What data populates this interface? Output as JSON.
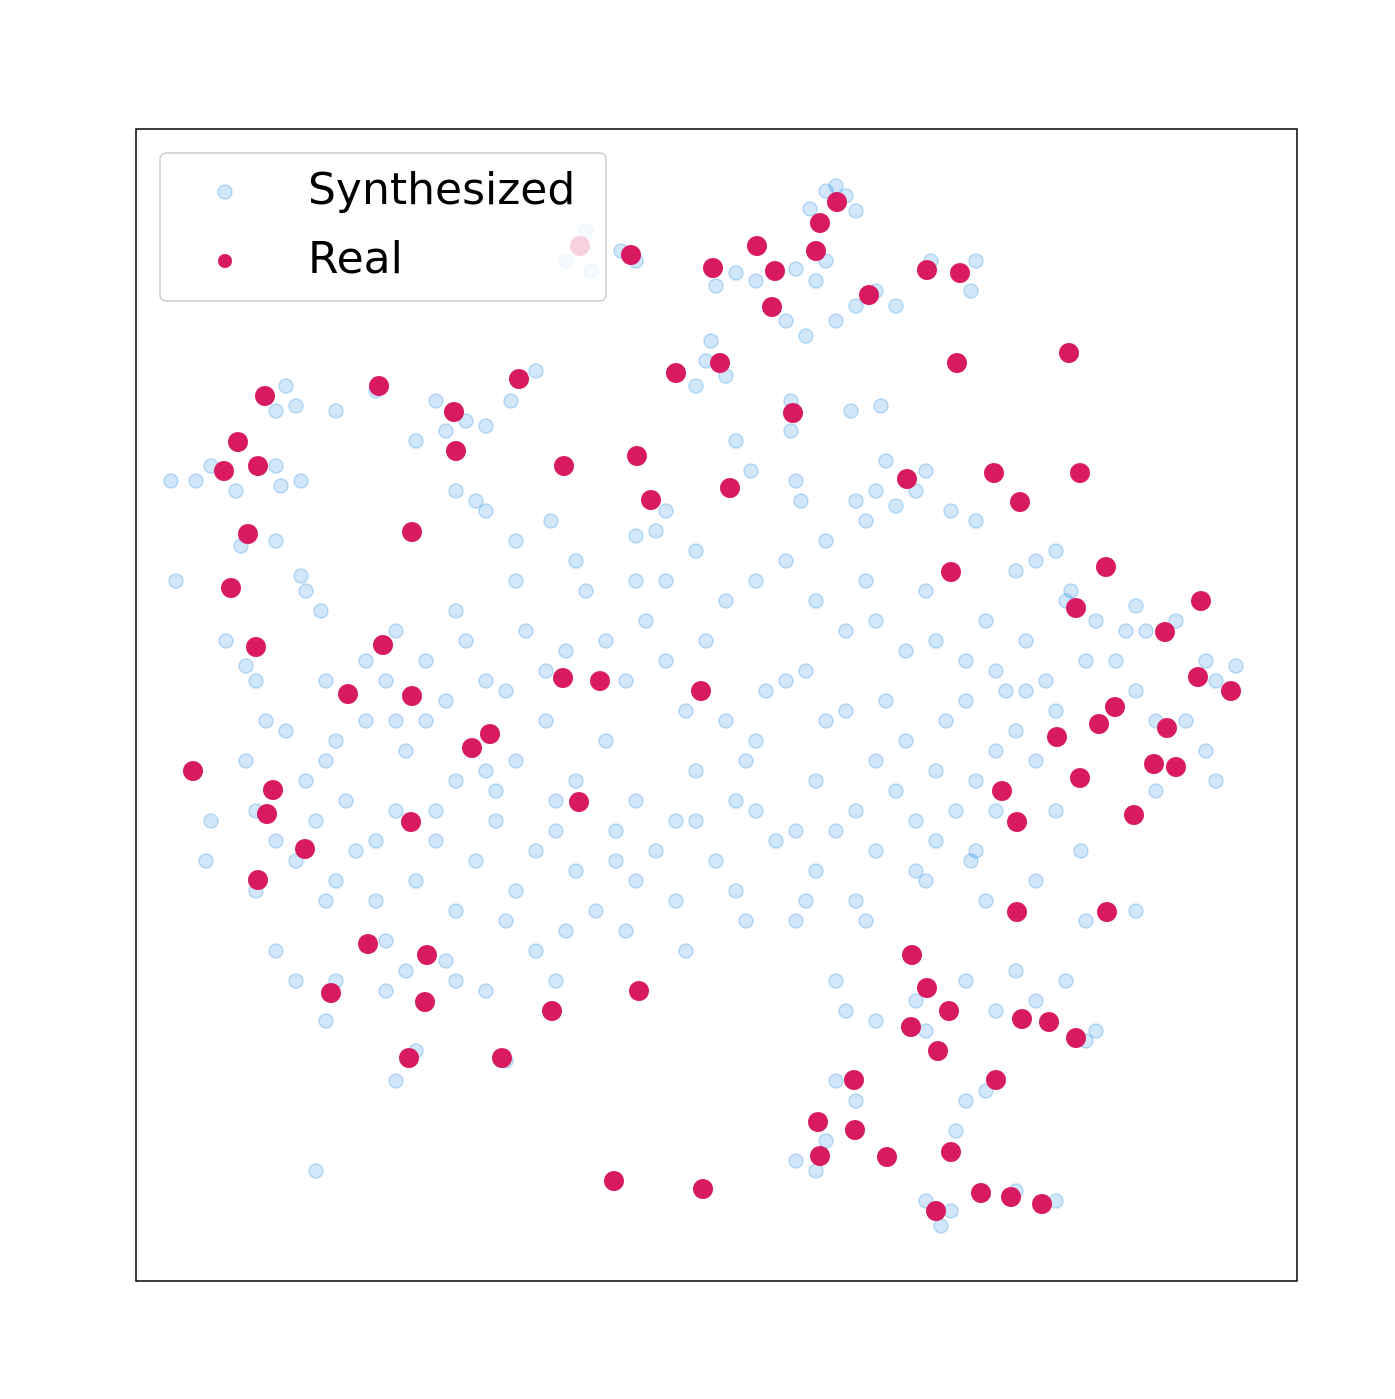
{
  "chart_data": {
    "type": "scatter",
    "xlim": [
      0,
      1161
    ],
    "ylim": [
      0,
      1152
    ],
    "legend": "upper left",
    "series": [
      {
        "name": "Synthesized",
        "color": "#1e88e5",
        "opacity": 0.2,
        "x": [
          700,
          710,
          690,
          720,
          674,
          690,
          660,
          680,
          600,
          580,
          620,
          650,
          670,
          720,
          700,
          740,
          760,
          795,
          840,
          835,
          450,
          430,
          455,
          500,
          485,
          575,
          570,
          560,
          590,
          400,
          375,
          300,
          310,
          330,
          350,
          280,
          150,
          140,
          160,
          240,
          200,
          655,
          655,
          715,
          745,
          60,
          75,
          140,
          145,
          165,
          100,
          110,
          140,
          165,
          105,
          340,
          350,
          380,
          415,
          320,
          530,
          520,
          500,
          615,
          600,
          665,
          660,
          750,
          740,
          760,
          780,
          790,
          720,
          730,
          690,
          815,
          840,
          880,
          900,
          920,
          935,
          960,
          1000,
          1010,
          1040,
          1070,
          1100,
          1080,
          990,
          90,
          110,
          120,
          170,
          185,
          190,
          35,
          150,
          170,
          190,
          210,
          230,
          250,
          270,
          290,
          310,
          330,
          350,
          370,
          390,
          410,
          430,
          450,
          470,
          490,
          510,
          530,
          550,
          570,
          590,
          610,
          630,
          650,
          670,
          690,
          710,
          730,
          750,
          770,
          790,
          810,
          830,
          850,
          870,
          890,
          910,
          930,
          950,
          980,
          1000,
          1020,
          1050,
          1070,
          1080,
          120,
          140,
          160,
          180,
          200,
          220,
          240,
          260,
          280,
          300,
          320,
          340,
          360,
          380,
          400,
          420,
          440,
          460,
          480,
          500,
          520,
          540,
          560,
          580,
          600,
          620,
          640,
          660,
          680,
          700,
          720,
          740,
          760,
          780,
          800,
          820,
          840,
          860,
          880,
          900,
          110,
          130,
          200,
          260,
          320,
          380,
          440,
          500,
          560,
          620,
          680,
          740,
          800,
          860,
          230,
          290,
          350,
          410,
          470,
          530,
          590,
          650,
          710,
          770,
          830,
          890,
          260,
          320,
          380,
          440,
          500,
          560,
          620,
          680,
          740,
          800,
          860,
          920,
          240,
          300,
          360,
          420,
          480,
          540,
          600,
          660,
          720,
          780,
          840,
          190,
          250,
          310,
          370,
          430,
          490,
          550,
          610,
          670,
          730,
          790,
          850,
          200,
          250,
          270,
          320,
          350,
          400,
          420,
          190,
          260,
          280,
          370,
          700,
          710,
          740,
          780,
          790,
          830,
          880,
          900,
          930,
          950,
          960,
          860,
          700,
          720,
          660,
          680,
          690,
          830,
          850,
          820,
          815,
          790,
          805,
          880,
          920,
          180,
          70,
          75,
          140,
          160,
          945,
          950,
          900,
          1000,
          835,
          920,
          1020,
          120,
          40
        ],
        "values": [
          1095,
          1085,
          1090,
          1070,
          1072,
          1020,
          1012,
          1000,
          1008,
          995,
          1000,
          960,
          945,
          975,
          960,
          990,
          975,
          1020,
          1020,
          990,
          1050,
          1020,
          1010,
          1020,
          1030,
          940,
          920,
          895,
          905,
          910,
          880,
          880,
          850,
          860,
          855,
          840,
          895,
          870,
          875,
          890,
          870,
          880,
          850,
          870,
          875,
          800,
          815,
          815,
          795,
          800,
          790,
          745,
          740,
          705,
          735,
          780,
          770,
          740,
          760,
          790,
          770,
          750,
          745,
          810,
          840,
          780,
          800,
          820,
          790,
          775,
          790,
          810,
          780,
          760,
          740,
          770,
          760,
          710,
          720,
          730,
          690,
          660,
          675,
          650,
          660,
          620,
          615,
          600,
          650,
          640,
          615,
          600,
          690,
          670,
          600,
          800,
          550,
          500,
          520,
          480,
          560,
          600,
          530,
          620,
          580,
          640,
          510,
          590,
          650,
          560,
          630,
          690,
          540,
          600,
          660,
          700,
          570,
          640,
          680,
          520,
          590,
          720,
          610,
          560,
          650,
          700,
          580,
          630,
          690,
          560,
          620,
          660,
          590,
          640,
          600,
          680,
          620,
          620,
          590,
          560,
          560,
          530,
          500,
          470,
          440,
          420,
          460,
          400,
          430,
          380,
          470,
          400,
          440,
          370,
          420,
          460,
          390,
          430,
          480,
          410,
          370,
          450,
          400,
          430,
          380,
          460,
          420,
          390,
          470,
          440,
          360,
          410,
          450,
          380,
          430,
          490,
          410,
          440,
          470,
          500,
          530,
          550,
          520,
          520,
          560,
          540,
          560,
          500,
          520,
          500,
          480,
          510,
          540,
          500,
          520,
          510,
          470,
          620,
          560,
          600,
          610,
          640,
          620,
          560,
          600,
          570,
          540,
          580,
          590,
          650,
          670,
          700,
          720,
          700,
          730,
          700,
          680,
          660,
          640,
          610,
          570,
          440,
          470,
          490,
          450,
          420,
          460,
          480,
          450,
          470,
          460,
          430,
          380,
          340,
          320,
          360,
          350,
          350,
          330,
          360,
          380,
          360,
          400,
          380,
          300,
          290,
          310,
          300,
          290,
          330,
          300,
          260,
          200,
          230,
          220,
          300,
          270,
          260,
          280,
          250,
          300,
          310,
          280,
          300,
          240,
          250,
          270,
          200,
          180,
          120,
          110,
          140,
          180,
          190,
          150,
          70,
          80,
          55,
          90,
          80,
          110,
          420,
          460,
          330,
          300,
          430,
          360,
          400,
          370,
          420,
          470,
          490,
          390,
          700
        ]
      },
      {
        "name": "Real",
        "color": "#d81b60",
        "opacity": 1,
        "x": [
          444,
          495,
          701,
          684,
          621,
          680,
          577,
          639,
          791,
          824,
          733,
          636,
          821,
          933,
          540,
          584,
          383,
          243,
          129,
          318,
          657,
          102,
          320,
          88,
          122,
          428,
          501,
          515,
          594,
          771,
          858,
          944,
          884,
          112,
          276,
          815,
          970,
          95,
          940,
          1065,
          1029,
          120,
          247,
          427,
          464,
          565,
          1062,
          1095,
          212,
          276,
          979,
          963,
          354,
          336,
          921,
          1031,
          57,
          1018,
          1040,
          944,
          137,
          866,
          131,
          443,
          275,
          881,
          998,
          169,
          122,
          881,
          971,
          232,
          291,
          776,
          195,
          503,
          791,
          289,
          416,
          813,
          886,
          913,
          775,
          940,
          802,
          273,
          366,
          718,
          860,
          682,
          719,
          684,
          751,
          815,
          478,
          567,
          845,
          875,
          906,
          800
        ],
        "values": [
          1035,
          1026,
          1079,
          1058,
          1035,
          1030,
          1013,
          1010,
          1011,
          1008,
          986,
          974,
          918,
          928,
          908,
          918,
          902,
          895,
          885,
          869,
          868,
          839,
          830,
          810,
          815,
          815,
          825,
          781,
          793,
          802,
          808,
          808,
          779,
          747,
          749,
          709,
          714,
          693,
          673,
          680,
          649,
          634,
          636,
          603,
          600,
          590,
          604,
          590,
          587,
          585,
          574,
          557,
          547,
          533,
          544,
          553,
          510,
          517,
          514,
          503,
          491,
          490,
          467,
          479,
          459,
          459,
          466,
          432,
          401,
          369,
          369,
          337,
          326,
          326,
          288,
          290,
          293,
          279,
          270,
          270,
          262,
          259,
          254,
          243,
          230,
          223,
          223,
          201,
          201,
          159,
          151,
          125,
          124,
          129,
          100,
          92,
          88,
          84,
          77,
          70
        ]
      }
    ]
  }
}
